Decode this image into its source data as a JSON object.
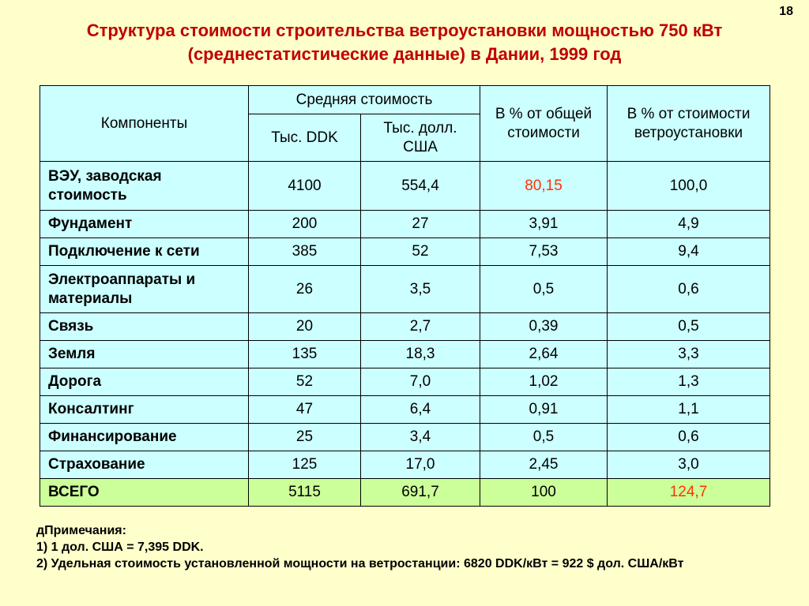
{
  "page_number": "18",
  "title": {
    "line1": "Структура стоимости строительства ветроустановки мощностью 750 кВт",
    "line2": "(среднестатистические данные) в Дании, 1999 год"
  },
  "table": {
    "headers": {
      "components": "Компоненты",
      "avg_cost": "Средняя стоимость",
      "ddk": "Тыс. DDK",
      "usd": "Тыс. долл. США",
      "pct_total": "В % от общей стоимости",
      "pct_turbine": "В % от стоимости ветроустановки"
    },
    "rows": [
      {
        "name": "ВЭУ, заводская стоимость",
        "ddk": "4100",
        "usd": "554,4",
        "pct_total": "80,15",
        "pct_turbine": "100,0"
      },
      {
        "name": "Фундамент",
        "ddk": "200",
        "usd": "27",
        "pct_total": "3,91",
        "pct_turbine": "4,9"
      },
      {
        "name": "Подключение к сети",
        "ddk": "385",
        "usd": "52",
        "pct_total": "7,53",
        "pct_turbine": "9,4"
      },
      {
        "name": "Электроаппараты и материалы",
        "ddk": "26",
        "usd": "3,5",
        "pct_total": "0,5",
        "pct_turbine": "0,6"
      },
      {
        "name": "Связь",
        "ddk": "20",
        "usd": "2,7",
        "pct_total": "0,39",
        "pct_turbine": "0,5"
      },
      {
        "name": "Земля",
        "ddk": "135",
        "usd": "18,3",
        "pct_total": "2,64",
        "pct_turbine": "3,3"
      },
      {
        "name": "Дорога",
        "ddk": "52",
        "usd": "7,0",
        "pct_total": "1,02",
        "pct_turbine": "1,3"
      },
      {
        "name": "Консалтинг",
        "ddk": "47",
        "usd": "6,4",
        "pct_total": "0,91",
        "pct_turbine": "1,1"
      },
      {
        "name": "Финансирование",
        "ddk": "25",
        "usd": "3,4",
        "pct_total": "0,5",
        "pct_turbine": "0,6"
      },
      {
        "name": "Страхование",
        "ddk": "125",
        "usd": "17,0",
        "pct_total": "2,45",
        "pct_turbine": "3,0"
      }
    ],
    "total": {
      "name": "ВСЕГО",
      "ddk": "5115",
      "usd": "691,7",
      "pct_total": "100",
      "pct_turbine": "124,7"
    }
  },
  "notes": {
    "heading": "дПримечания:",
    "note1": "1) 1 дол. США = 7,395 DDK.",
    "note2": "2) Удельная стоимость установленной мощности на ветростанции: 6820 DDK/кВт = 922 $ дол. США/кВт"
  },
  "colors": {
    "background": "#FFFFCC",
    "title": "#C00000",
    "table_bg": "#CCFFFF",
    "total_row_bg": "#CCFF99",
    "highlight": "#FF3300"
  }
}
